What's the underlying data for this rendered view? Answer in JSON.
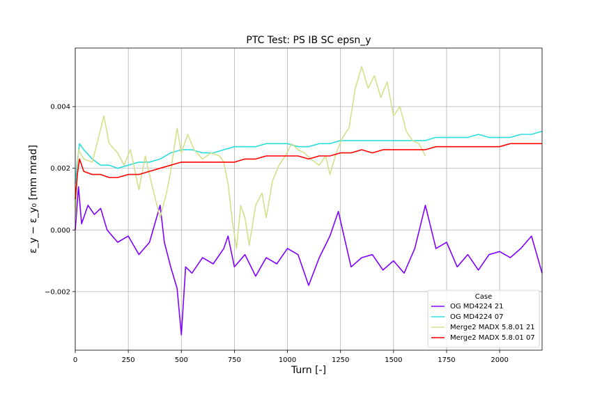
{
  "chart_data": {
    "type": "line",
    "title": "PTC Test: PS IB SC epsn_y",
    "xlabel": "Turn [-]",
    "ylabel": "ε_y − ε_y₀ [mm mrad]",
    "xlim": [
      0,
      2200
    ],
    "ylim": [
      -0.0039,
      0.0059
    ],
    "xticks": [
      0,
      250,
      500,
      750,
      1000,
      1250,
      1500,
      1750,
      2000
    ],
    "xtick_labels": [
      "0",
      "250",
      "500",
      "750",
      "1000",
      "1250",
      "1500",
      "1750",
      "2000"
    ],
    "yticks": [
      -0.002,
      0.0,
      0.002,
      0.004
    ],
    "ytick_labels": [
      "−0.002",
      "0.000",
      "0.002",
      "0.004"
    ],
    "grid": true,
    "legend": {
      "title": "Case",
      "placement": "lower-right"
    },
    "series": [
      {
        "name": "OG MD4224 21",
        "color": "#7f00ff",
        "x": [
          0,
          15,
          30,
          60,
          90,
          120,
          150,
          200,
          250,
          300,
          350,
          400,
          420,
          450,
          480,
          500,
          520,
          550,
          600,
          650,
          700,
          720,
          750,
          800,
          850,
          900,
          950,
          1000,
          1050,
          1100,
          1150,
          1200,
          1240,
          1300,
          1350,
          1400,
          1450,
          1500,
          1550,
          1600,
          1650,
          1700,
          1750,
          1800,
          1850,
          1900,
          1950,
          2000,
          2050,
          2100,
          2150,
          2200
        ],
        "values": [
          0.0,
          0.0014,
          0.0002,
          0.0008,
          0.0005,
          0.0007,
          0.0,
          -0.0004,
          -0.0002,
          -0.0008,
          -0.0004,
          0.0008,
          -0.0004,
          -0.0012,
          -0.0019,
          -0.0034,
          -0.0012,
          -0.0014,
          -0.0009,
          -0.0011,
          -0.0006,
          -0.0002,
          -0.0012,
          -0.0008,
          -0.0015,
          -0.0009,
          -0.0011,
          -0.0006,
          -0.0008,
          -0.0018,
          -0.0009,
          -0.0002,
          0.0006,
          -0.0012,
          -0.0009,
          -0.0008,
          -0.0013,
          -0.001,
          -0.0014,
          -0.0006,
          0.0008,
          -0.0006,
          -0.0004,
          -0.0012,
          -0.0008,
          -0.0013,
          -0.0008,
          -0.0007,
          -0.0009,
          -0.0006,
          -0.0002,
          -0.0014
        ]
      },
      {
        "name": "OG MD4224 07",
        "color": "#2adddd",
        "x": [
          0,
          10,
          20,
          40,
          80,
          120,
          160,
          200,
          250,
          300,
          350,
          400,
          450,
          500,
          550,
          600,
          650,
          700,
          750,
          800,
          850,
          900,
          950,
          1000,
          1050,
          1100,
          1150,
          1200,
          1250,
          1300,
          1350,
          1400,
          1450,
          1500,
          1550,
          1600,
          1650,
          1700,
          1750,
          1800,
          1850,
          1900,
          1950,
          2000,
          2050,
          2100,
          2150,
          2200
        ],
        "values": [
          0.0015,
          0.0022,
          0.0028,
          0.0026,
          0.0023,
          0.0021,
          0.0021,
          0.002,
          0.0021,
          0.0022,
          0.0022,
          0.0023,
          0.0025,
          0.0026,
          0.0026,
          0.0025,
          0.0025,
          0.0026,
          0.0027,
          0.0027,
          0.0027,
          0.0028,
          0.0028,
          0.0028,
          0.0027,
          0.0027,
          0.0028,
          0.0028,
          0.0029,
          0.0029,
          0.0029,
          0.0029,
          0.0029,
          0.0029,
          0.0029,
          0.0029,
          0.0029,
          0.003,
          0.003,
          0.003,
          0.003,
          0.0031,
          0.003,
          0.003,
          0.003,
          0.0031,
          0.0031,
          0.0032
        ]
      },
      {
        "name": "Merge2 MADX 5.8.01 21",
        "color": "#d4e08b",
        "x": [
          0,
          15,
          40,
          80,
          110,
          135,
          160,
          200,
          230,
          260,
          300,
          330,
          360,
          400,
          430,
          450,
          480,
          500,
          530,
          560,
          600,
          640,
          680,
          700,
          720,
          740,
          760,
          780,
          800,
          820,
          850,
          880,
          900,
          930,
          960,
          990,
          1020,
          1050,
          1080,
          1110,
          1150,
          1180,
          1200,
          1230,
          1260,
          1290,
          1320,
          1350,
          1380,
          1410,
          1440,
          1470,
          1500,
          1530,
          1560,
          1590,
          1620,
          1650
        ],
        "values": [
          0.0003,
          0.0026,
          0.0023,
          0.0022,
          0.003,
          0.0037,
          0.0028,
          0.0025,
          0.0021,
          0.0026,
          0.0013,
          0.0024,
          0.0015,
          0.0004,
          0.0012,
          0.0019,
          0.0033,
          0.0025,
          0.0031,
          0.0026,
          0.0023,
          0.0025,
          0.0024,
          0.0022,
          0.0015,
          0.0003,
          -0.0006,
          0.0008,
          0.0004,
          -0.0005,
          0.0008,
          0.0012,
          0.0004,
          0.0016,
          0.0021,
          0.0024,
          0.0028,
          0.0026,
          0.0025,
          0.0023,
          0.0021,
          0.0024,
          0.0018,
          0.0025,
          0.003,
          0.0033,
          0.0046,
          0.0053,
          0.0046,
          0.005,
          0.0043,
          0.0048,
          0.0037,
          0.004,
          0.0032,
          0.0029,
          0.0028,
          0.0024
        ]
      },
      {
        "name": "Merge2 MADX 5.8.01 07",
        "color": "#ff0000",
        "x": [
          0,
          10,
          20,
          40,
          80,
          120,
          160,
          200,
          250,
          300,
          350,
          400,
          450,
          500,
          550,
          600,
          650,
          700,
          750,
          800,
          850,
          900,
          950,
          1000,
          1050,
          1100,
          1150,
          1200,
          1250,
          1300,
          1350,
          1400,
          1450,
          1500,
          1550,
          1600,
          1650,
          1700,
          1750,
          1800,
          1850,
          1900,
          1950,
          2000,
          2050,
          2100,
          2150,
          2200
        ],
        "values": [
          0.001,
          0.0018,
          0.0023,
          0.0019,
          0.0018,
          0.0018,
          0.0017,
          0.0017,
          0.0018,
          0.0018,
          0.0019,
          0.002,
          0.0021,
          0.0022,
          0.0022,
          0.0022,
          0.0022,
          0.0022,
          0.0022,
          0.0023,
          0.0023,
          0.0024,
          0.0024,
          0.0024,
          0.0024,
          0.0023,
          0.0024,
          0.0024,
          0.0025,
          0.0025,
          0.0026,
          0.0025,
          0.0026,
          0.0026,
          0.0026,
          0.0026,
          0.0026,
          0.0027,
          0.0027,
          0.0027,
          0.0027,
          0.0027,
          0.0027,
          0.0027,
          0.0028,
          0.0028,
          0.0028,
          0.0028
        ]
      }
    ]
  }
}
